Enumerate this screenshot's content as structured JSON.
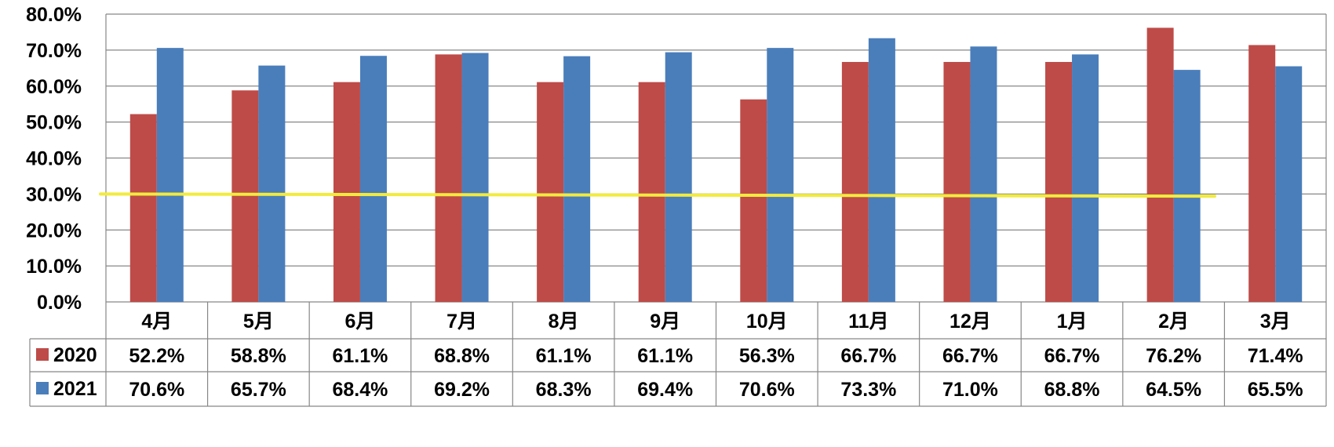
{
  "chart_data": {
    "type": "bar",
    "title": "",
    "xlabel": "",
    "ylabel": "",
    "ylim": [
      0,
      80
    ],
    "y_ticks": [
      "0.0%",
      "10.0%",
      "20.0%",
      "30.0%",
      "40.0%",
      "50.0%",
      "60.0%",
      "70.0%",
      "80.0%"
    ],
    "grid": true,
    "legend": "data-table-left",
    "categories": [
      "4月",
      "5月",
      "6月",
      "7月",
      "8月",
      "9月",
      "10月",
      "11月",
      "12月",
      "1月",
      "2月",
      "3月"
    ],
    "series": [
      {
        "name": "2020",
        "color": "#BE4B48",
        "values": [
          52.2,
          58.8,
          61.1,
          68.8,
          61.1,
          61.1,
          56.3,
          66.7,
          66.7,
          66.7,
          76.2,
          71.4
        ],
        "labels": [
          "52.2%",
          "58.8%",
          "61.1%",
          "68.8%",
          "61.1%",
          "61.1%",
          "56.3%",
          "66.7%",
          "66.7%",
          "66.7%",
          "76.2%",
          "71.4%"
        ]
      },
      {
        "name": "2021",
        "color": "#4A7EBB",
        "values": [
          70.6,
          65.7,
          68.4,
          69.2,
          68.3,
          69.4,
          70.6,
          73.3,
          71.0,
          68.8,
          64.5,
          65.5
        ],
        "labels": [
          "70.6%",
          "65.7%",
          "68.4%",
          "69.2%",
          "68.3%",
          "69.4%",
          "70.6%",
          "73.3%",
          "71.0%",
          "68.8%",
          "64.5%",
          "65.5%"
        ]
      }
    ],
    "reference_line": {
      "value_start": 30.0,
      "value_end": 29.4,
      "color": "#F2EB3E"
    },
    "grid_color": "#878787"
  }
}
